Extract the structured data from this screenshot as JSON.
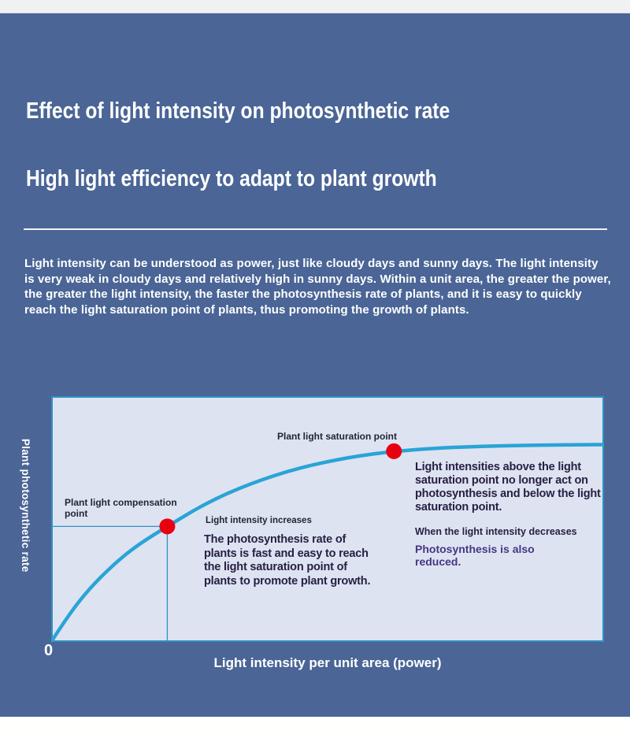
{
  "page": {
    "top_strip": "#f0f1f2",
    "background": "#4a6596",
    "bottom_strip": "#fffffe"
  },
  "header": {
    "title1": "Effect of light intensity on photosynthetic rate",
    "title2": "High light efficiency to adapt to plant growth"
  },
  "intro": {
    "text": "Light intensity can be understood as power, just like cloudy days and sunny days. The light intensity is very weak in cloudy days and relatively high in sunny days. Within a unit area, the greater the power, the greater the light intensity, the faster the photosynthesis rate of plants, and it is easy to quickly reach the light saturation point of plants, thus promoting the growth of plants."
  },
  "chart": {
    "y_axis_label": "Plant photosynthetic rate",
    "x_axis_label": "Light intensity per unit area (power)",
    "origin_label": "0",
    "compensation_label": "Plant light compensation point",
    "saturation_label": "Plant light saturation point",
    "increase_label": "Light intensity increases",
    "left_note": "The photosynthesis rate of plants is fast and easy to reach the light saturation point of plants to promote plant growth.",
    "right_note": "Light intensities above the light saturation point no longer act on photosynthesis and below the light saturation point.",
    "decrease_label": "When the light intensity decreases",
    "decrease_note": "Photosynthesis is also reduced.",
    "colors": {
      "panel": "#dee3f2",
      "axis": "#2f93c0",
      "curve": "#2aa4d6",
      "point": "#e8000f",
      "dark_text": "#1d2534",
      "note_text": "#262043",
      "purple_text": "#453784"
    }
  },
  "chart_data": {
    "type": "line",
    "title": "",
    "xlabel": "Light intensity per unit area (power)",
    "ylabel": "Plant photosynthetic rate",
    "axis_ticks": [
      "0"
    ],
    "axes_numeric": false,
    "grid": false,
    "legend": false,
    "x_range": [
      0,
      1
    ],
    "y_range": [
      0,
      1
    ],
    "curve": [
      [
        0,
        0
      ],
      [
        0.03,
        0.105
      ],
      [
        0.07,
        0.22
      ],
      [
        0.12,
        0.33
      ],
      [
        0.16,
        0.4
      ],
      [
        0.21,
        0.47
      ],
      [
        0.28,
        0.565
      ],
      [
        0.36,
        0.645
      ],
      [
        0.45,
        0.71
      ],
      [
        0.54,
        0.752
      ],
      [
        0.62,
        0.776
      ],
      [
        0.72,
        0.792
      ],
      [
        0.85,
        0.8
      ],
      [
        1,
        0.803
      ]
    ],
    "points": [
      {
        "name": "Plant light compensation point",
        "x": 0.21,
        "y": 0.47,
        "droplines": true
      },
      {
        "name": "Plant light saturation point",
        "x": 0.62,
        "y": 0.776,
        "droplines": false
      }
    ]
  }
}
